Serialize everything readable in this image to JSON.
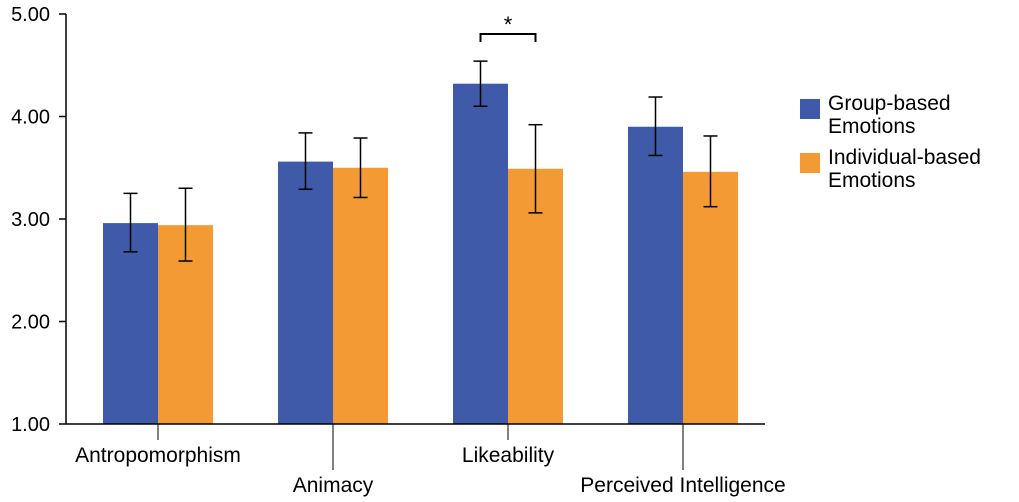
{
  "chart_data": {
    "type": "bar",
    "categories": [
      "Antropomorphism",
      "Animacy",
      "Likeability",
      "Perceived Intelligence"
    ],
    "series": [
      {
        "name": "Group-based Emotions",
        "color": "#3f5aa8",
        "values": [
          2.96,
          3.56,
          4.32,
          3.9
        ],
        "error_low": [
          2.68,
          3.29,
          4.1,
          3.62
        ],
        "error_high": [
          3.25,
          3.84,
          4.54,
          4.19
        ]
      },
      {
        "name": "Individual-based Emotions",
        "color": "#f39a34",
        "values": [
          2.94,
          3.5,
          3.49,
          3.46
        ],
        "error_low": [
          2.59,
          3.21,
          3.06,
          3.12
        ],
        "error_high": [
          3.3,
          3.79,
          3.92,
          3.81
        ]
      }
    ],
    "yticks": [
      "1.00",
      "2.00",
      "3.00",
      "4.00",
      "5.00"
    ],
    "ylim": [
      1.0,
      5.0
    ],
    "significance": {
      "category": "Likeability",
      "label": "*"
    },
    "legend_position": "right",
    "grid": false
  }
}
